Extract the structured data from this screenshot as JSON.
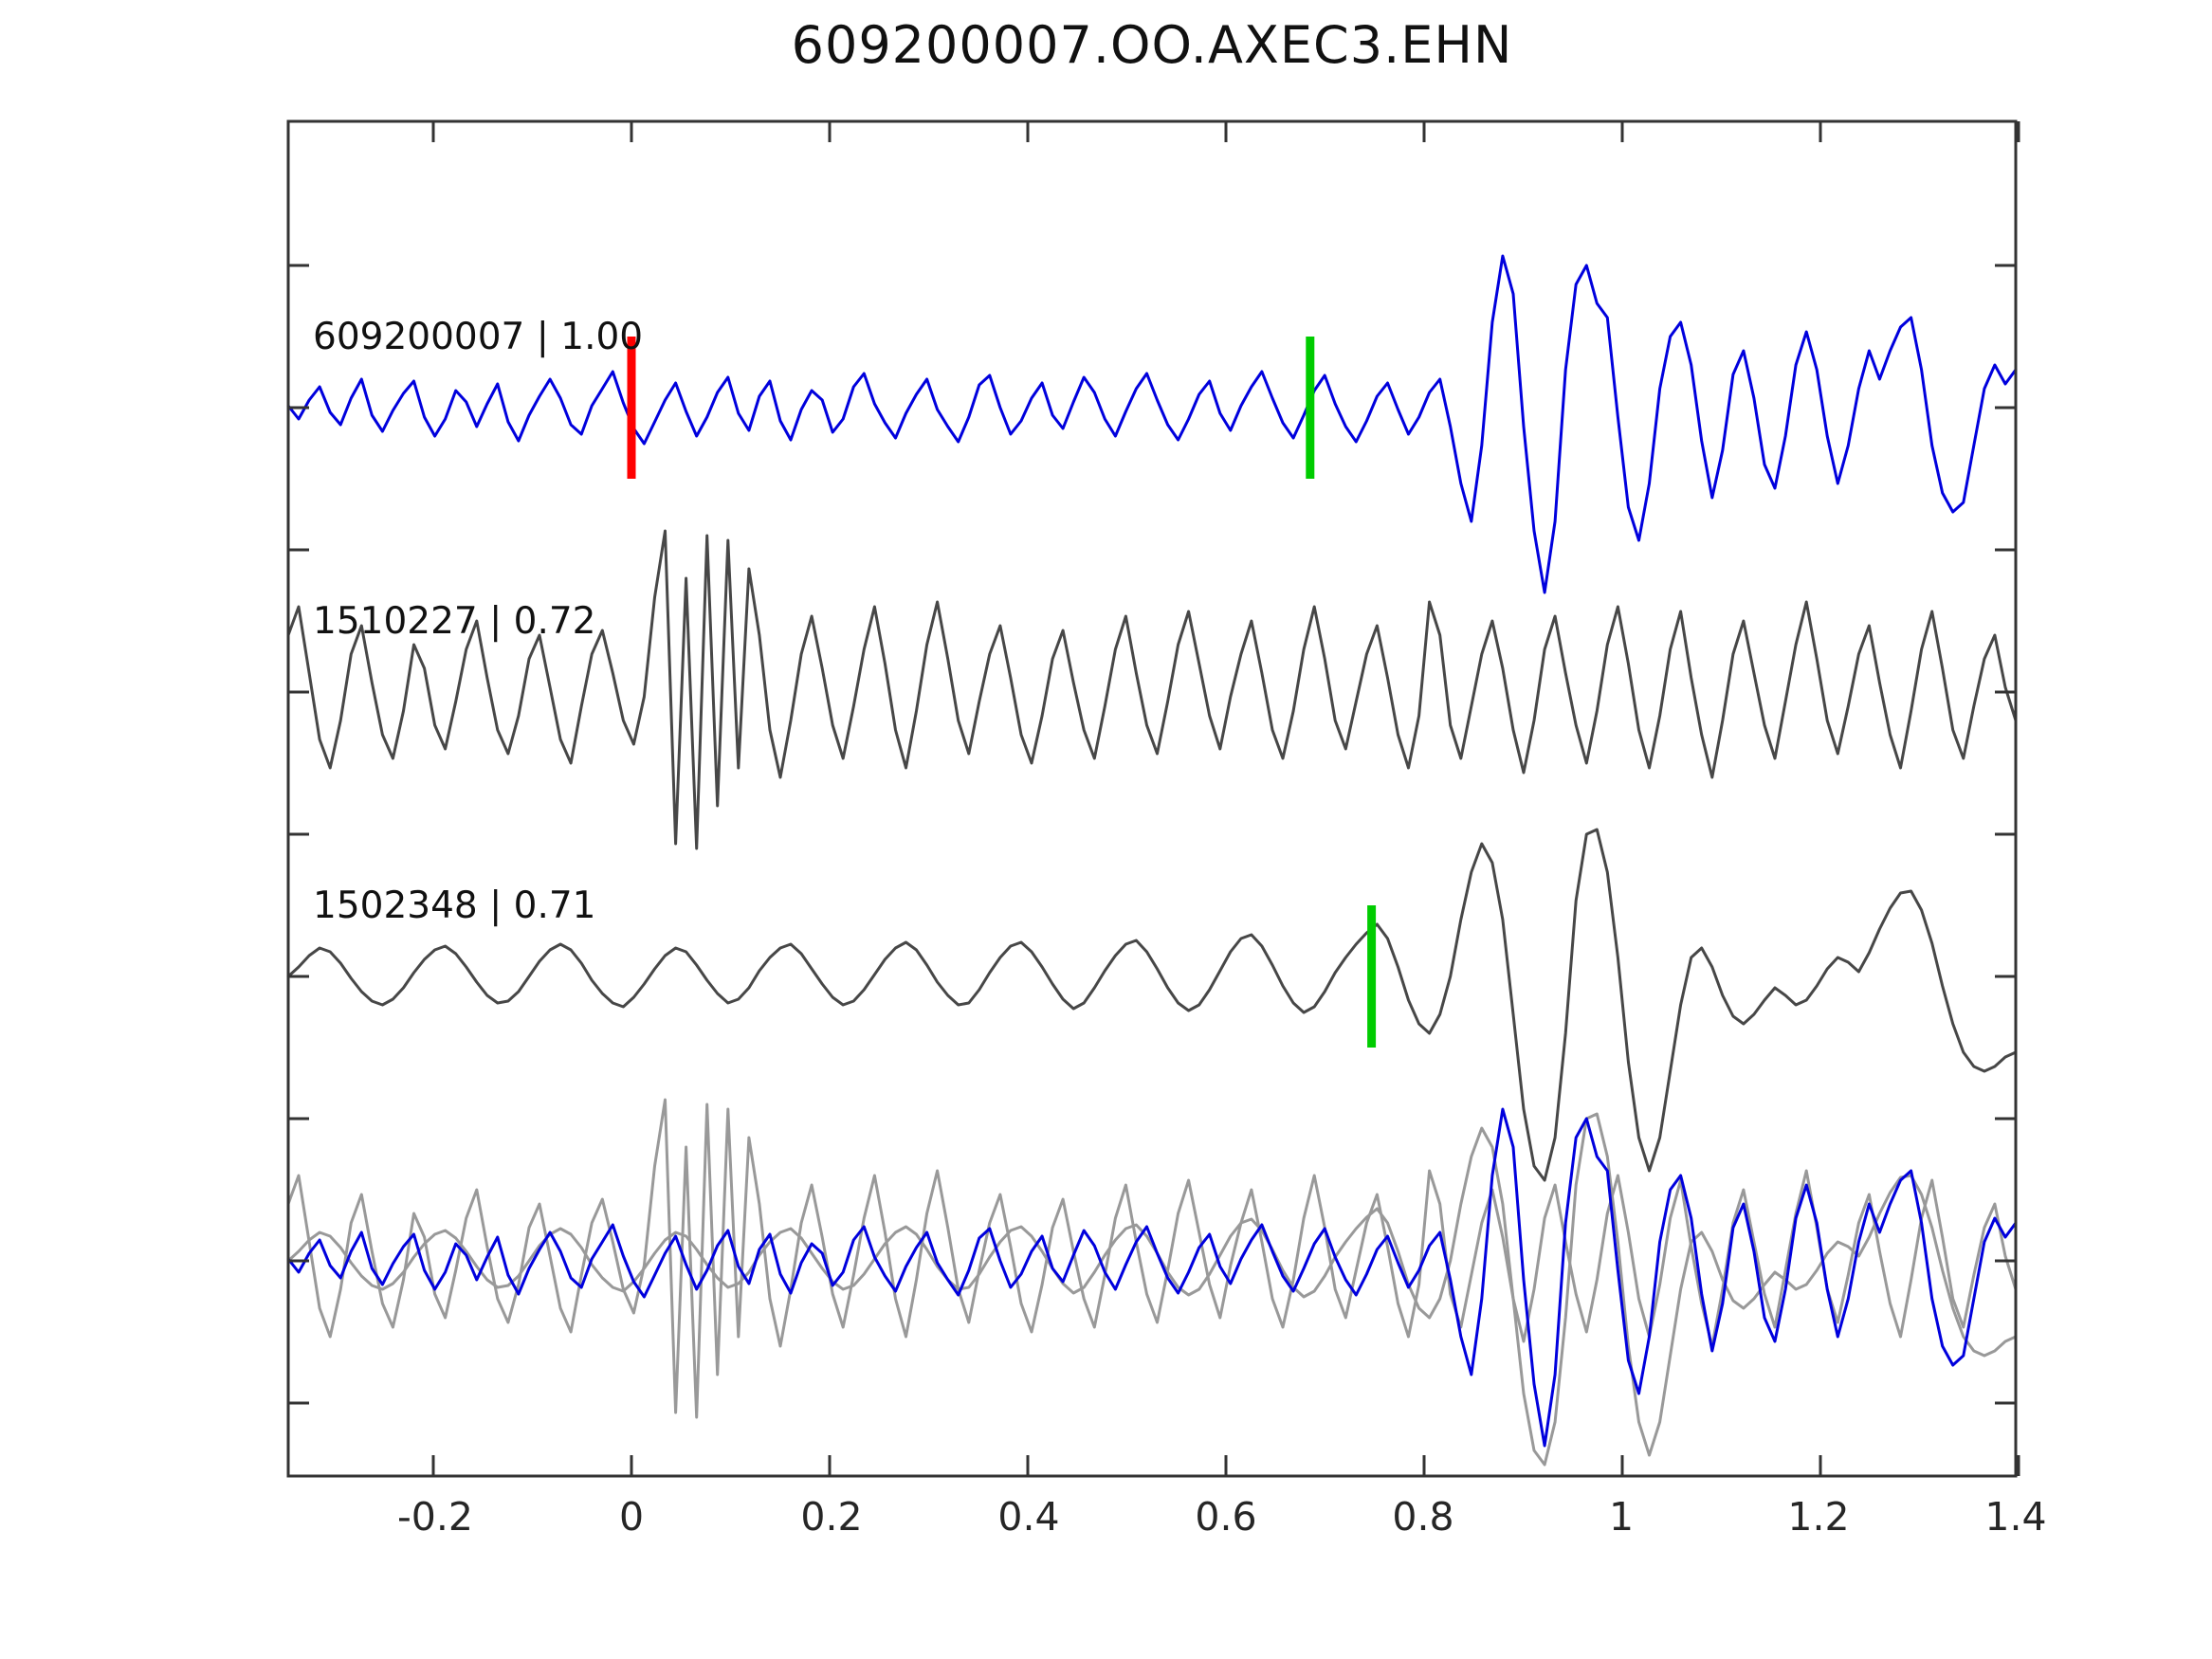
{
  "title": "609200007.OO.AXEC3.EHN",
  "chart_data": {
    "type": "line",
    "title": "609200007.OO.AXEC3.EHN",
    "description": "Seismic waveform correlation plot: template trace (blue) with two matched detections (gray), plus all three traces overlaid on the bottom row. Red tick marks the template origin pick, green ticks mark detection picks.",
    "x_axis": {
      "label": "",
      "range": [
        -0.346,
        1.4
      ],
      "ticks": [
        -0.2,
        0,
        0.2,
        0.4,
        0.6,
        0.8,
        1,
        1.2,
        1.4
      ],
      "tick_labels": [
        "-0.2",
        "0",
        "0.2",
        "0.4",
        "0.6",
        "0.8",
        "1",
        "1.2",
        "1.4"
      ]
    },
    "y_axis": {
      "tick_labels": [],
      "note": "unlabeled amplitude ticks every half row offset"
    },
    "grid": false,
    "legend": "none",
    "colors": {
      "template": "#0000dd",
      "detection": "#474747",
      "overlay_gray": "#999999",
      "pick_red": "#ff0000",
      "pick_green": "#00cc00",
      "axis": "#333333",
      "background": "#ffffff"
    },
    "traces": [
      {
        "id": "609200007",
        "correlation": "1.00",
        "label": "609200007 | 1.00",
        "color": "#0000dd",
        "row": 0,
        "points": [
          2,
          -12,
          8,
          22,
          -5,
          -18,
          10,
          30,
          -8,
          -25,
          -3,
          15,
          28,
          -10,
          -30,
          -12,
          18,
          6,
          -20,
          4,
          25,
          -15,
          -35,
          -8,
          12,
          30,
          10,
          -18,
          -28,
          2,
          20,
          38,
          5,
          -22,
          -38,
          -15,
          8,
          26,
          -4,
          -30,
          -10,
          16,
          32,
          -6,
          -24,
          12,
          28,
          -14,
          -34,
          -2,
          18,
          8,
          -26,
          -12,
          22,
          36,
          4,
          -16,
          -32,
          -6,
          14,
          30,
          -2,
          -20,
          -36,
          -10,
          24,
          34,
          0,
          -28,
          -14,
          10,
          26,
          -8,
          -22,
          6,
          32,
          16,
          -12,
          -30,
          -4,
          20,
          36,
          8,
          -18,
          -34,
          -12,
          14,
          28,
          -6,
          -24,
          2,
          22,
          38,
          10,
          -16,
          -32,
          -8,
          18,
          34,
          4,
          -20,
          -36,
          -14,
          12,
          26,
          -2,
          -28,
          -10,
          16,
          30,
          -20,
          -80,
          -120,
          -40,
          90,
          160,
          120,
          -20,
          -130,
          -195,
          -120,
          40,
          130,
          150,
          110,
          95,
          -10,
          -105,
          -140,
          -80,
          20,
          75,
          90,
          45,
          -35,
          -95,
          -45,
          35,
          60,
          10,
          -60,
          -85,
          -30,
          45,
          80,
          40,
          -30,
          -80,
          -40,
          20,
          60,
          30,
          60,
          85,
          95,
          40,
          -40,
          -90,
          -110,
          -100,
          -40,
          20,
          45,
          25,
          40
        ]
      },
      {
        "id": "1510227",
        "correlation": "0.72",
        "label": "1510227 | 0.72",
        "color": "#474747",
        "row": 1,
        "points": [
          60,
          90,
          20,
          -50,
          -80,
          -30,
          40,
          70,
          10,
          -45,
          -70,
          -20,
          50,
          25,
          -35,
          -60,
          -10,
          45,
          75,
          15,
          -40,
          -65,
          -25,
          35,
          60,
          5,
          -50,
          -75,
          -15,
          40,
          65,
          20,
          -30,
          -55,
          -5,
          100,
          170,
          -160,
          120,
          -165,
          165,
          -120,
          160,
          -80,
          130,
          60,
          -40,
          -90,
          -30,
          40,
          80,
          25,
          -35,
          -70,
          -15,
          45,
          90,
          30,
          -40,
          -80,
          -20,
          50,
          95,
          35,
          -30,
          -65,
          -10,
          40,
          70,
          15,
          -45,
          -75,
          -25,
          35,
          65,
          10,
          -40,
          -70,
          -15,
          45,
          80,
          20,
          -35,
          -65,
          -10,
          50,
          85,
          30,
          -25,
          -60,
          -5,
          40,
          75,
          20,
          -40,
          -70,
          -20,
          45,
          90,
          35,
          -30,
          -60,
          -10,
          40,
          70,
          15,
          -45,
          -80,
          -25,
          95,
          60,
          -35,
          -70,
          -15,
          40,
          75,
          25,
          -40,
          -85,
          -30,
          45,
          80,
          20,
          -35,
          -75,
          -20,
          50,
          90,
          30,
          -40,
          -80,
          -25,
          45,
          85,
          15,
          -45,
          -90,
          -30,
          40,
          75,
          20,
          -35,
          -70,
          -10,
          50,
          95,
          35,
          -30,
          -65,
          -15,
          40,
          70,
          10,
          -45,
          -80,
          -20,
          45,
          85,
          25,
          -40,
          -70,
          -15,
          35,
          60,
          5,
          -30
        ]
      },
      {
        "id": "1502348",
        "correlation": "0.71",
        "label": "1502348 | 0.71",
        "color": "#474747",
        "row": 2,
        "points": [
          0,
          10,
          22,
          30,
          26,
          14,
          -2,
          -16,
          -26,
          -30,
          -24,
          -12,
          4,
          18,
          28,
          32,
          24,
          10,
          -6,
          -20,
          -28,
          -26,
          -16,
          0,
          16,
          28,
          34,
          28,
          14,
          -4,
          -18,
          -28,
          -32,
          -22,
          -8,
          8,
          22,
          30,
          26,
          12,
          -4,
          -18,
          -28,
          -24,
          -12,
          6,
          20,
          30,
          34,
          24,
          8,
          -8,
          -22,
          -30,
          -26,
          -14,
          2,
          18,
          30,
          36,
          28,
          12,
          -6,
          -20,
          -30,
          -28,
          -14,
          4,
          20,
          32,
          36,
          26,
          10,
          -8,
          -24,
          -34,
          -28,
          -12,
          6,
          22,
          34,
          38,
          26,
          8,
          -12,
          -28,
          -36,
          -30,
          -14,
          6,
          26,
          40,
          44,
          32,
          12,
          -10,
          -28,
          -38,
          -32,
          -16,
          4,
          20,
          34,
          46,
          55,
          40,
          10,
          -25,
          -50,
          -60,
          -40,
          0,
          60,
          110,
          140,
          120,
          60,
          -40,
          -140,
          -200,
          -215,
          -170,
          -60,
          80,
          150,
          155,
          110,
          20,
          -90,
          -170,
          -205,
          -170,
          -100,
          -30,
          20,
          30,
          10,
          -20,
          -42,
          -50,
          -40,
          -25,
          -12,
          -20,
          -30,
          -25,
          -10,
          8,
          20,
          15,
          5,
          25,
          50,
          72,
          88,
          90,
          70,
          35,
          -10,
          -50,
          -80,
          -95,
          -100,
          -95,
          -85,
          -80
        ]
      }
    ],
    "overlay_row": {
      "row": 3,
      "description": "all three traces overlaid",
      "order": [
        1,
        2,
        0
      ],
      "colors": [
        "#999999",
        "#999999",
        "#0000dd"
      ]
    },
    "markers": [
      {
        "row": 0,
        "x": 0.0,
        "color": "#ff0000",
        "kind": "template-pick"
      },
      {
        "row": 0,
        "x": 0.685,
        "color": "#00cc00",
        "kind": "detection-pick"
      },
      {
        "row": 2,
        "x": 0.747,
        "color": "#00cc00",
        "kind": "detection-pick"
      }
    ]
  }
}
